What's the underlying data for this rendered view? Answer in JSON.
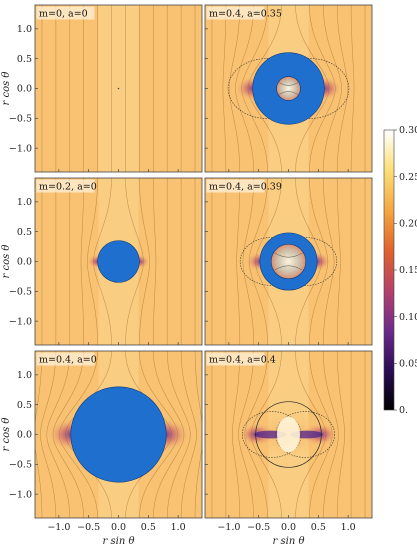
{
  "axes": {
    "xlabel": "r sin θ",
    "ylabel": "r cos θ",
    "xticks": [
      "−1.0",
      "−0.5",
      "0.0",
      "0.5",
      "1.0"
    ],
    "yticks": [
      "1.0",
      "0.5",
      "0.0",
      "−0.5",
      "−1.0"
    ],
    "xlim": [
      -1.4,
      1.4
    ],
    "ylim": [
      -1.4,
      1.4
    ]
  },
  "colorbar": {
    "ticks": [
      "0.30",
      "0.25",
      "0.20",
      "0.15",
      "0.10",
      "0.05",
      "0."
    ],
    "range": [
      0,
      0.3
    ],
    "colors": [
      "#000000",
      "#2a0c52",
      "#6b2a8a",
      "#b2406e",
      "#e0622b",
      "#f5a540",
      "#fde07a",
      "#ffffff"
    ]
  },
  "chart_data": [
    {
      "type": "heatmap",
      "label": "m=0, a=0",
      "m": 0,
      "a": 0,
      "disk_outer_radius": 0,
      "disk_inner_radius": 0
    },
    {
      "type": "heatmap",
      "label": "m=0.4, a=0.35",
      "m": 0.4,
      "a": 0.35,
      "disk_outer_radius": 0.6,
      "disk_inner_radius": 0.2
    },
    {
      "type": "heatmap",
      "label": "m=0.2, a=0",
      "m": 0.2,
      "a": 0,
      "disk_outer_radius": 0.35,
      "disk_inner_radius": 0
    },
    {
      "type": "heatmap",
      "label": "m=0.4, a=0.39",
      "m": 0.4,
      "a": 0.39,
      "disk_outer_radius": 0.48,
      "disk_inner_radius": 0.29
    },
    {
      "type": "heatmap",
      "label": "m=0.4, a=0",
      "m": 0.4,
      "a": 0,
      "disk_outer_radius": 0.8,
      "disk_inner_radius": 0
    },
    {
      "type": "heatmap",
      "label": "m=0.4, a=0.4",
      "m": 0.4,
      "a": 0.4,
      "disk_outer_radius": 0,
      "disk_inner_radius": 0
    }
  ]
}
